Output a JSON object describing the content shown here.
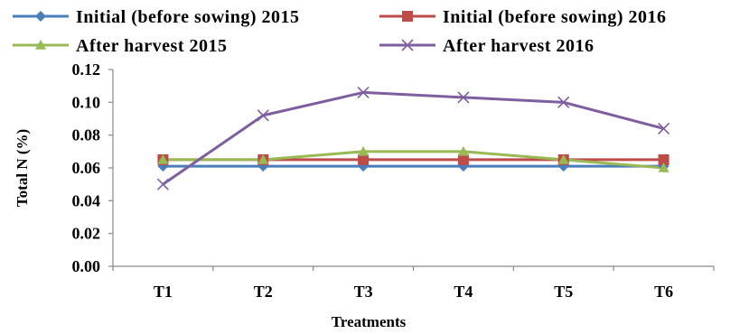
{
  "chart_data": {
    "type": "line",
    "categories": [
      "T1",
      "T2",
      "T3",
      "T4",
      "T5",
      "T6"
    ],
    "series": [
      {
        "name": "Initial (before sowing) 2015",
        "values": [
          0.061,
          0.061,
          0.061,
          0.061,
          0.061,
          0.061
        ],
        "color": "#4a7ebb",
        "marker": "diamond"
      },
      {
        "name": "Initial (before sowing) 2016",
        "values": [
          0.065,
          0.065,
          0.065,
          0.065,
          0.065,
          0.065
        ],
        "color": "#be4b48",
        "marker": "square"
      },
      {
        "name": "After harvest 2015",
        "values": [
          0.065,
          0.065,
          0.07,
          0.07,
          0.065,
          0.06
        ],
        "color": "#98b954",
        "marker": "triangle"
      },
      {
        "name": "After harvest 2016",
        "values": [
          0.05,
          0.092,
          0.106,
          0.103,
          0.1,
          0.084
        ],
        "color": "#7d5fa0",
        "marker": "x"
      }
    ],
    "xlabel": "Treatments",
    "ylabel": "Total N (%)",
    "ylim": [
      0,
      0.12
    ],
    "yticks": [
      "0.00",
      "0.02",
      "0.04",
      "0.06",
      "0.08",
      "0.10",
      "0.12"
    ],
    "grid": false,
    "legend_position": "top"
  }
}
